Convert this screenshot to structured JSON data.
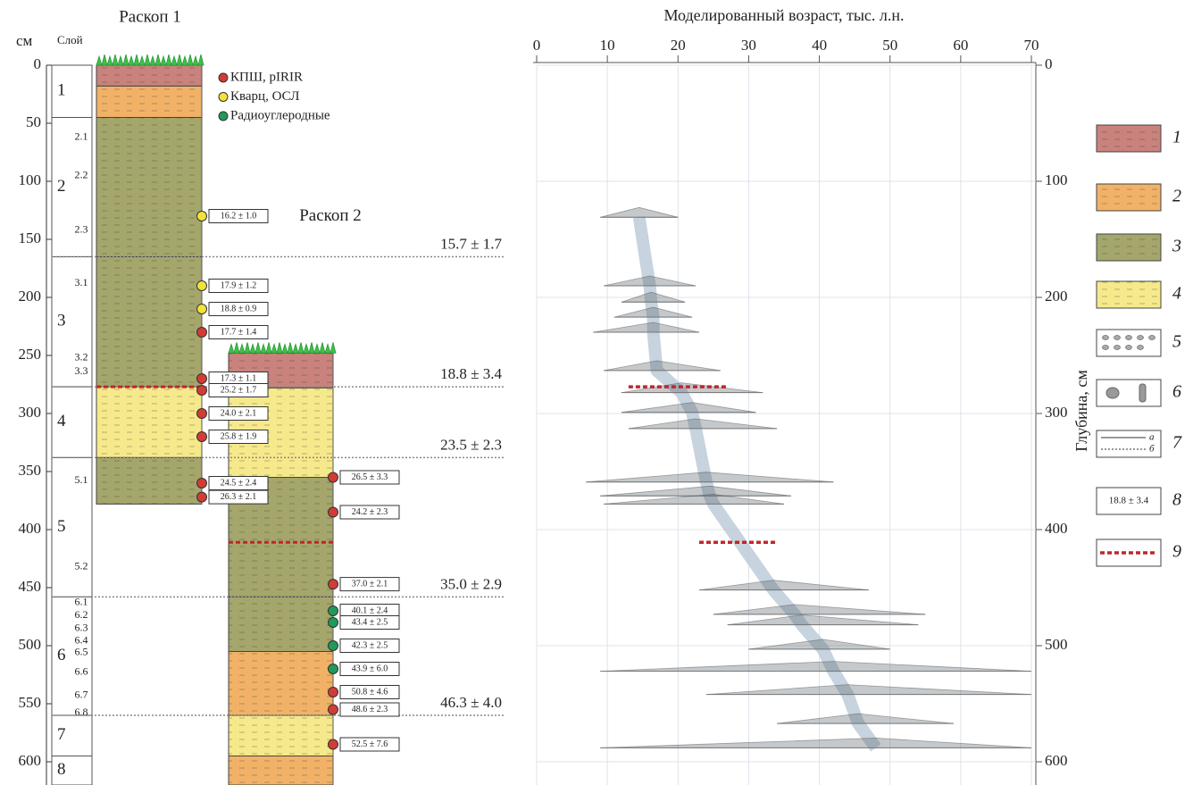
{
  "chart_data": {
    "type": "age-depth",
    "title": "Моделированный возраст, тыс. л.н.",
    "y_label": "Глубина, см",
    "xlim": [
      0,
      70
    ],
    "xticks": [
      0,
      10,
      20,
      30,
      40,
      50,
      60,
      70
    ],
    "ylim": [
      0,
      620
    ],
    "yticks": [
      0,
      100,
      200,
      300,
      400,
      500,
      600
    ],
    "grid": true,
    "model": {
      "depth": [
        131,
        190,
        204,
        217,
        230,
        263,
        282,
        299,
        313,
        359,
        371,
        378,
        452,
        473,
        482,
        503,
        522,
        542,
        567,
        588
      ],
      "median": [
        14.5,
        16,
        16.2,
        16.5,
        16.5,
        17,
        20.5,
        22,
        22.5,
        24,
        24.5,
        25,
        33.5,
        36.5,
        37.5,
        40.5,
        42,
        44,
        45.5,
        48
      ],
      "lo": [
        9,
        9.5,
        12,
        11,
        8,
        9.5,
        12,
        12,
        13,
        7,
        9,
        9.5,
        23,
        25,
        27,
        30,
        9,
        24,
        34,
        9
      ],
      "hi": [
        20,
        22.5,
        21,
        22,
        23,
        26,
        32,
        31,
        34,
        42,
        36,
        35,
        47,
        55,
        54,
        50,
        70,
        70,
        59,
        70
      ]
    },
    "hiatuses": [
      {
        "depth": 277,
        "from": 13,
        "to": 27,
        "section": 0
      },
      {
        "depth": 411,
        "from": 23,
        "to": 34,
        "section": 1
      }
    ]
  },
  "column": {
    "unit": "см",
    "layer_header": "Слой",
    "ticks": [
      0,
      50,
      100,
      150,
      200,
      250,
      300,
      350,
      400,
      450,
      500,
      550,
      600
    ],
    "layers": [
      {
        "label": "1",
        "top": 0,
        "bottom": 45
      },
      {
        "label": "2",
        "top": 45,
        "bottom": 165
      },
      {
        "label": "3",
        "top": 165,
        "bottom": 277
      },
      {
        "label": "4",
        "top": 277,
        "bottom": 338
      },
      {
        "label": "5",
        "top": 338,
        "bottom": 458
      },
      {
        "label": "6",
        "top": 458,
        "bottom": 560
      },
      {
        "label": "7",
        "top": 560,
        "bottom": 595
      },
      {
        "label": "8",
        "top": 595,
        "bottom": 620
      }
    ],
    "sublayers": [
      {
        "label": "2.1",
        "depth": 62
      },
      {
        "label": "2.2",
        "depth": 95
      },
      {
        "label": "2.3",
        "depth": 142
      },
      {
        "label": "3.1",
        "depth": 188
      },
      {
        "label": "3.2",
        "depth": 252
      },
      {
        "label": "3.3",
        "depth": 264
      },
      {
        "label": "5.1",
        "depth": 358
      },
      {
        "label": "5.2",
        "depth": 432
      },
      {
        "label": "6.1",
        "depth": 463
      },
      {
        "label": "6.2",
        "depth": 474
      },
      {
        "label": "6.3",
        "depth": 485
      },
      {
        "label": "6.4",
        "depth": 496
      },
      {
        "label": "6.5",
        "depth": 506
      },
      {
        "label": "6.6",
        "depth": 523
      },
      {
        "label": "6.7",
        "depth": 543
      },
      {
        "label": "6.8",
        "depth": 558
      }
    ],
    "boundaries": [
      {
        "depth": 165,
        "label": "15.7 ± 1.7"
      },
      {
        "depth": 277,
        "label": "18.8 ± 3.4"
      },
      {
        "depth": 338,
        "label": "23.5 ± 2.3"
      },
      {
        "depth": 458,
        "label": "35.0 ± 2.9"
      },
      {
        "depth": 560,
        "label": "46.3 ± 4.0"
      }
    ]
  },
  "sections": [
    {
      "title": "Раскоп 1",
      "units": [
        {
          "top": 0,
          "bottom": 18,
          "color": "#c9827d"
        },
        {
          "top": 18,
          "bottom": 45,
          "color": "#f1b267"
        },
        {
          "top": 45,
          "bottom": 165,
          "color": "#a4a66b"
        },
        {
          "top": 165,
          "bottom": 277,
          "color": "#a4a66b"
        },
        {
          "top": 277,
          "bottom": 338,
          "color": "#f6e98c"
        },
        {
          "top": 338,
          "bottom": 378,
          "color": "#a4a66b"
        }
      ],
      "samples": [
        {
          "depth": 130,
          "label": "16.2 ± 1.0",
          "color": "#f2e23a"
        },
        {
          "depth": 190,
          "label": "17.9 ± 1.2",
          "color": "#f2e23a"
        },
        {
          "depth": 210,
          "label": "18.8 ± 0.9",
          "color": "#f2e23a"
        },
        {
          "depth": 230,
          "label": "17.7 ± 1.4",
          "color": "#d23c36"
        },
        {
          "depth": 270,
          "label": "17.3 ± 1.1",
          "color": "#d23c36"
        },
        {
          "depth": 280,
          "label": "25.2 ± 1.7",
          "color": "#d23c36"
        },
        {
          "depth": 300,
          "label": "24.0 ± 2.1",
          "color": "#d23c36"
        },
        {
          "depth": 320,
          "label": "25.8 ± 1.9",
          "color": "#d23c36"
        },
        {
          "depth": 360,
          "label": "24.5 ± 2.4",
          "color": "#d23c36"
        },
        {
          "depth": 372,
          "label": "26.3 ± 2.1",
          "color": "#d23c36"
        }
      ]
    },
    {
      "title": "Раскоп 2",
      "units": [
        {
          "top": 248,
          "bottom": 278,
          "color": "#c9827d"
        },
        {
          "top": 278,
          "bottom": 355,
          "color": "#f6e98c"
        },
        {
          "top": 355,
          "bottom": 458,
          "color": "#a4a66b"
        },
        {
          "top": 458,
          "bottom": 505,
          "color": "#a4a66b"
        },
        {
          "top": 505,
          "bottom": 560,
          "color": "#f1b267"
        },
        {
          "top": 560,
          "bottom": 595,
          "color": "#f6e98c"
        },
        {
          "top": 595,
          "bottom": 620,
          "color": "#f1b267"
        }
      ],
      "samples": [
        {
          "depth": 355,
          "label": "26.5 ± 3.3",
          "color": "#d23c36"
        },
        {
          "depth": 385,
          "label": "24.2 ± 2.3",
          "color": "#d23c36"
        },
        {
          "depth": 447,
          "label": "37.0 ± 2.1",
          "color": "#d23c36"
        },
        {
          "depth": 470,
          "label": "40.1 ± 2.4",
          "color": "#1f9a5a"
        },
        {
          "depth": 480,
          "label": "43.4 ± 2.5",
          "color": "#1f9a5a"
        },
        {
          "depth": 500,
          "label": "42.3 ± 2.5",
          "color": "#1f9a5a"
        },
        {
          "depth": 520,
          "label": "43.9 ± 6.0",
          "color": "#1f9a5a"
        },
        {
          "depth": 540,
          "label": "50.8 ± 4.6",
          "color": "#d23c36"
        },
        {
          "depth": 555,
          "label": "48.6 ± 2.3",
          "color": "#d23c36"
        },
        {
          "depth": 585,
          "label": "52.5 ± 7.6",
          "color": "#d23c36"
        }
      ]
    }
  ],
  "sample_legend": [
    {
      "label": "КПШ, pIRIR",
      "color": "#d23c36"
    },
    {
      "label": "Кварц, ОСЛ",
      "color": "#f2e23a"
    },
    {
      "label": "Радиоуглеродные",
      "color": "#1f9a5a"
    }
  ],
  "legend": [
    {
      "label": "1",
      "color": "#c9827d"
    },
    {
      "label": "2",
      "color": "#f1b267"
    },
    {
      "label": "3",
      "color": "#a4a66b"
    },
    {
      "label": "4",
      "color": "#f6e98c"
    },
    {
      "label": "5"
    },
    {
      "label": "6"
    },
    {
      "label": "7",
      "sub": [
        "а",
        "б"
      ]
    },
    {
      "label": "8",
      "sample": "18.8 ± 3.4"
    },
    {
      "label": "9"
    }
  ]
}
